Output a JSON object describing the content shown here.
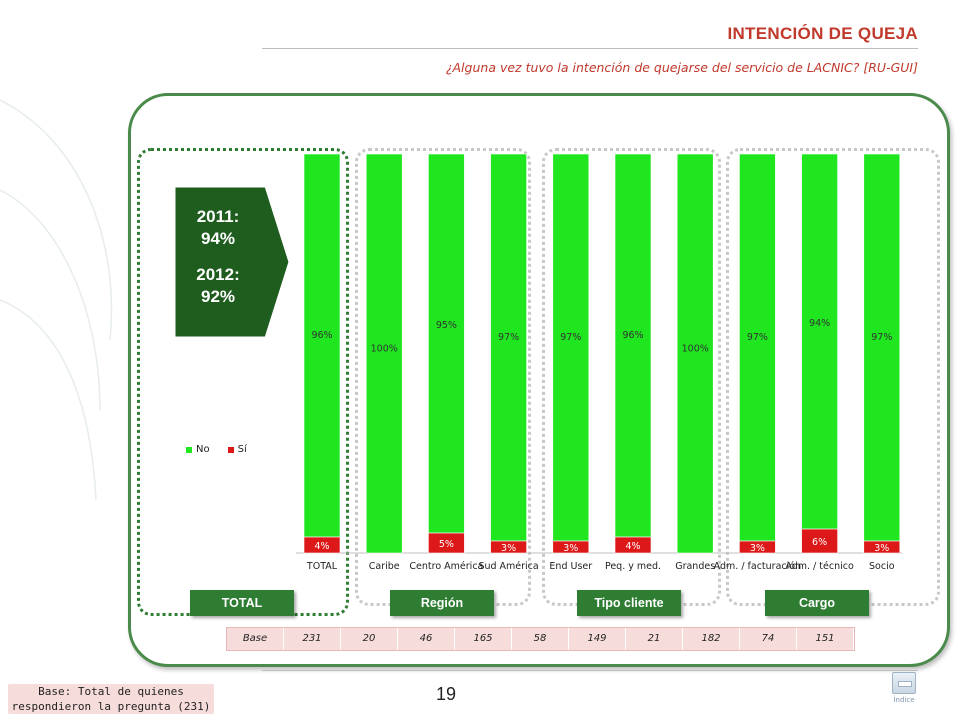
{
  "header": {
    "title": "INTENCIÓN DE QUEJA",
    "subtitle": "¿Alguna vez tuvo la intención de quejarse del servicio de LACNIC? [RU-GUI]"
  },
  "callout": {
    "line1": "2011:",
    "line2": "94%",
    "line3": "2012:",
    "line4": "92%"
  },
  "colors": {
    "no": "#1fe61f",
    "si": "#dc1818",
    "group_green": "#2e7d32",
    "accent_red": "#c0392b"
  },
  "chart_data": {
    "type": "bar",
    "stacked": true,
    "categories": [
      "TOTAL",
      "Caribe",
      "Centro América",
      "Sud América",
      "End User",
      "Peq. y med.",
      "Grandes",
      "Adm. / facturación",
      "Adm. / técnico",
      "Socio"
    ],
    "series": [
      {
        "name": "No",
        "values": [
          96,
          100,
          95,
          97,
          97,
          96,
          100,
          97,
          94,
          97
        ],
        "labels": [
          "96%",
          "100%",
          "95%",
          "97%",
          "97%",
          "96%",
          "100%",
          "97%",
          "94%",
          "97%"
        ]
      },
      {
        "name": "Sí",
        "values": [
          4,
          0,
          5,
          3,
          3,
          4,
          0,
          3,
          6,
          3
        ],
        "labels": [
          "4%",
          "",
          "5%",
          "3%",
          "3%",
          "4%",
          "",
          "3%",
          "6%",
          "3%"
        ]
      }
    ],
    "ylim": [
      0,
      100
    ],
    "legend": "left-bottom"
  },
  "groups": {
    "total": "TOTAL",
    "region": "Región",
    "tipo": "Tipo cliente",
    "cargo": "Cargo"
  },
  "base": {
    "label": "Base",
    "values": [
      "231",
      "20",
      "46",
      "165",
      "58",
      "149",
      "21",
      "182",
      "74",
      "151"
    ]
  },
  "footer": {
    "page": "19",
    "base_note_line1": "Base: Total de quienes",
    "base_note_line2": "respondieron la pregunta (231)",
    "index_label": "Índice"
  }
}
